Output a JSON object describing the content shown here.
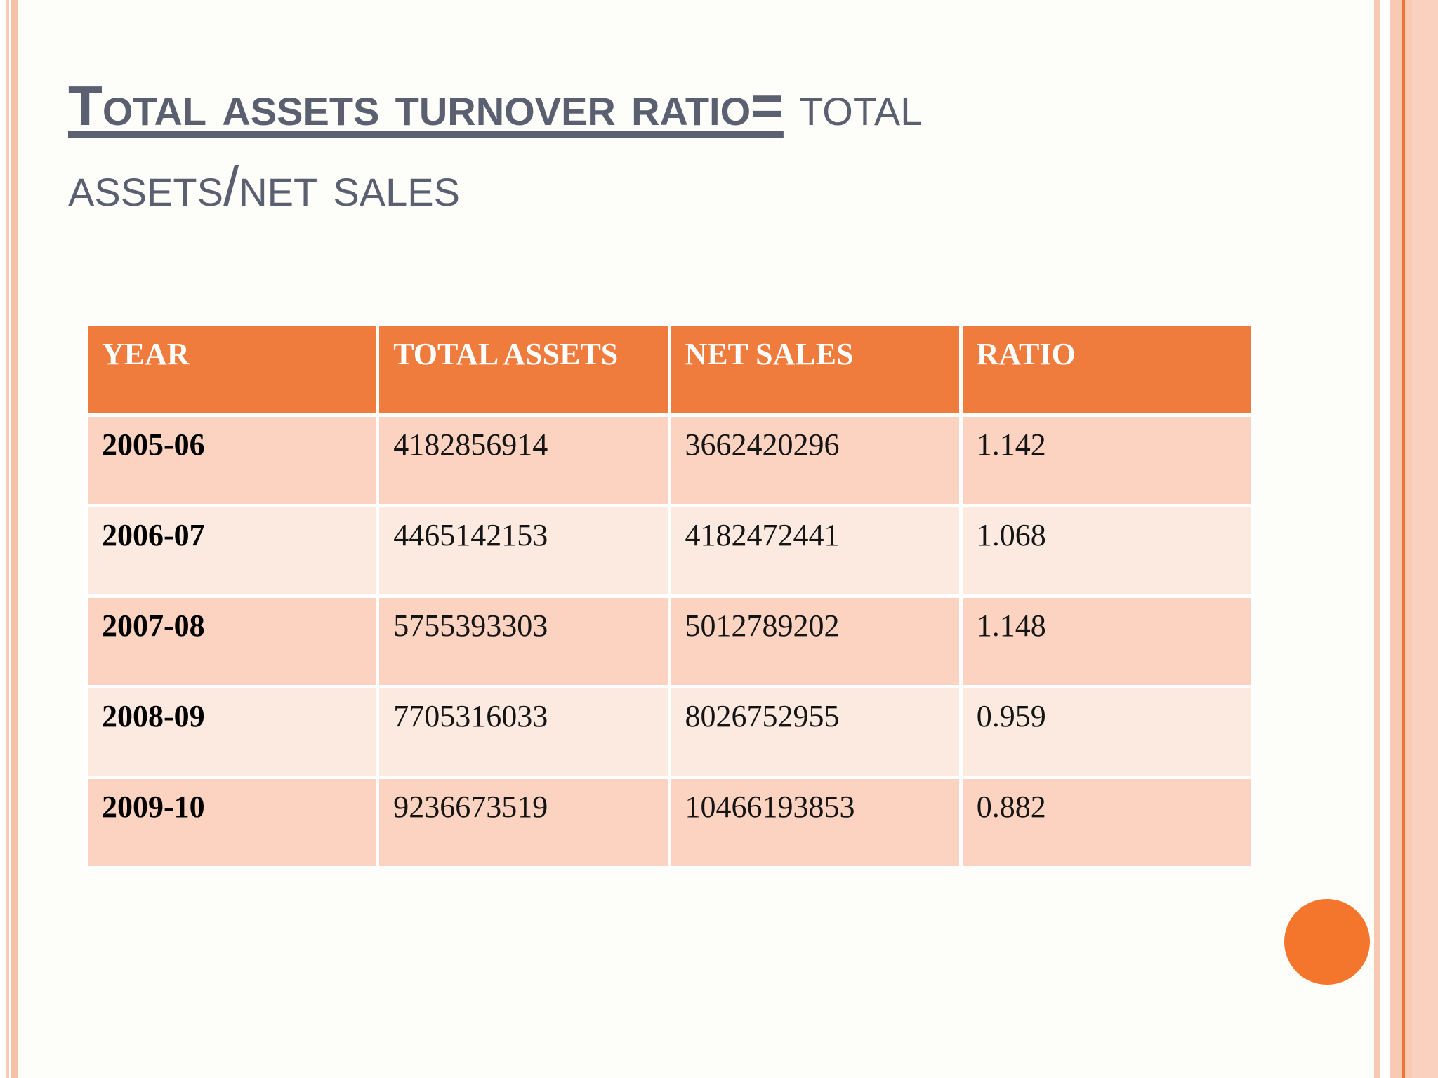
{
  "theme_colors": {
    "slide_bg": "#fdfdfa",
    "title_color": "#5a6070",
    "header_orange": "#ef7b3c",
    "row_peach_dark": "#fbd3c0",
    "row_peach_light": "#fce9e0",
    "circle_orange": "#f4762d",
    "stripe_orange": "#ec7434",
    "stripe_peach": "#f9c9b3"
  },
  "title": {
    "underlined_text": "Total assets turnover ratio=",
    "plain_text": " total assets/net sales"
  },
  "table": {
    "headers": [
      "YEAR",
      "TOTAL ASSETS",
      "NET SALES",
      "RATIO"
    ],
    "rows": [
      [
        "2005-06",
        "4182856914",
        "3662420296",
        "1.142"
      ],
      [
        "2006-07",
        "4465142153",
        "4182472441",
        "1.068"
      ],
      [
        "2007-08",
        "5755393303",
        "5012789202",
        "1.148"
      ],
      [
        "2008-09",
        "7705316033",
        "8026752955",
        "0.959"
      ],
      [
        "2009-10",
        "9236673519",
        "10466193853",
        "0.882"
      ]
    ]
  },
  "chart_data": {
    "type": "table",
    "title": "Total assets turnover ratio= total assets/net sales",
    "columns": [
      "YEAR",
      "TOTAL ASSETS",
      "NET SALES",
      "RATIO"
    ],
    "rows": [
      [
        "2005-06",
        4182856914,
        3662420296,
        1.142
      ],
      [
        "2006-07",
        4465142153,
        4182472441,
        1.068
      ],
      [
        "2007-08",
        5755393303,
        5012789202,
        1.148
      ],
      [
        "2008-09",
        7705316033,
        8026752955,
        0.959
      ],
      [
        "2009-10",
        9236673519,
        10466193853,
        0.882
      ]
    ]
  }
}
